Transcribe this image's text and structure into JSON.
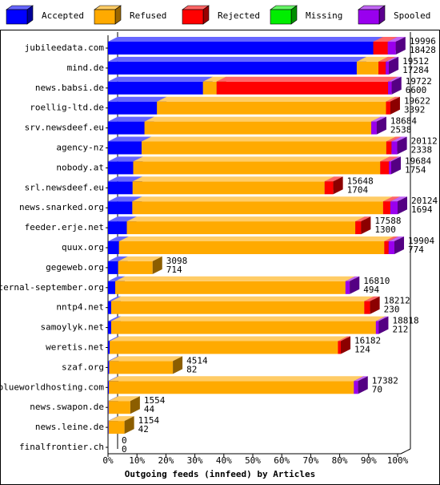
{
  "chart_data": {
    "type": "bar",
    "orientation": "horizontal",
    "stacked": true,
    "xlabel": "Outgoing feeds (innfeed) by Articles",
    "categories": [
      "jubileedata.com",
      "mind.de",
      "news.babsi.de",
      "roellig-ltd.de",
      "srv.newsdeef.eu",
      "agency-nz",
      "nobody.at",
      "srl.newsdeef.eu",
      "news.snarked.org",
      "feeder.erje.net",
      "quux.org",
      "gegeweb.org",
      "eternal-september.org",
      "nntp4.net",
      "samoylyk.net",
      "weretis.net",
      "szaf.org",
      "blueworldhosting.com",
      "news.swapon.de",
      "news.leine.de",
      "finalfrontier.ch"
    ],
    "series": [
      {
        "name": "Accepted",
        "color": "#0000ff",
        "values": [
          91.6,
          85.9,
          32.8,
          16.9,
          12.6,
          11.6,
          8.7,
          8.5,
          8.4,
          6.5,
          3.8,
          3.5,
          2.5,
          1.1,
          1.1,
          0.6,
          0.4,
          0.3,
          0.2,
          0.2,
          0
        ]
      },
      {
        "name": "Refused",
        "color": "#ffaa00",
        "values": [
          0,
          7.5,
          4.7,
          79.1,
          78.3,
          84.5,
          85.3,
          66.3,
          86.6,
          78.9,
          91.6,
          11.9,
          79.5,
          87.4,
          91.4,
          78.8,
          22.0,
          84.6,
          7.5,
          5.5,
          0
        ]
      },
      {
        "name": "Rejected",
        "color": "#ff0000",
        "values": [
          5.0,
          2.5,
          59.2,
          1.5,
          0,
          1.8,
          3.0,
          3.0,
          2.5,
          2.0,
          1.5,
          0,
          0,
          2.0,
          0,
          1.0,
          0,
          0,
          0,
          0,
          0
        ]
      },
      {
        "name": "Missing",
        "color": "#00ee00",
        "values": [
          0,
          0,
          0,
          0,
          0,
          0,
          0,
          0,
          0,
          0,
          0,
          0,
          0,
          0,
          0,
          0,
          0,
          0,
          0,
          0,
          0
        ]
      },
      {
        "name": "Spooled",
        "color": "#9900ee",
        "values": [
          2.8,
          1.1,
          1.3,
          0,
          1.9,
          2.0,
          0.8,
          0,
          2.5,
          0,
          2.0,
          0,
          1.5,
          0,
          1.0,
          0,
          0,
          1.5,
          0,
          0,
          0
        ]
      }
    ],
    "offered": [
      19996,
      19512,
      19722,
      19622,
      18684,
      20112,
      19684,
      15648,
      20124,
      17588,
      19904,
      3098,
      16810,
      18212,
      18818,
      16182,
      4514,
      17382,
      1554,
      1154,
      0
    ],
    "accepted_articles": [
      18428,
      17284,
      6600,
      3392,
      2538,
      2338,
      1754,
      1704,
      1694,
      1300,
      774,
      714,
      494,
      230,
      212,
      124,
      82,
      70,
      44,
      42,
      0
    ],
    "xlim": [
      0,
      100
    ],
    "xticks": [
      {
        "value": 0,
        "label": "0%"
      },
      {
        "value": 10,
        "label": "10%"
      },
      {
        "value": 20,
        "label": "20%"
      },
      {
        "value": 30,
        "label": "30%"
      },
      {
        "value": 40,
        "label": "40%"
      },
      {
        "value": 50,
        "label": "50%"
      },
      {
        "value": 60,
        "label": "60%"
      },
      {
        "value": 70,
        "label": "70%"
      },
      {
        "value": 80,
        "label": "80%"
      },
      {
        "value": 90,
        "label": "90%"
      },
      {
        "value": 100,
        "label": "100%"
      }
    ],
    "legend": "top"
  }
}
